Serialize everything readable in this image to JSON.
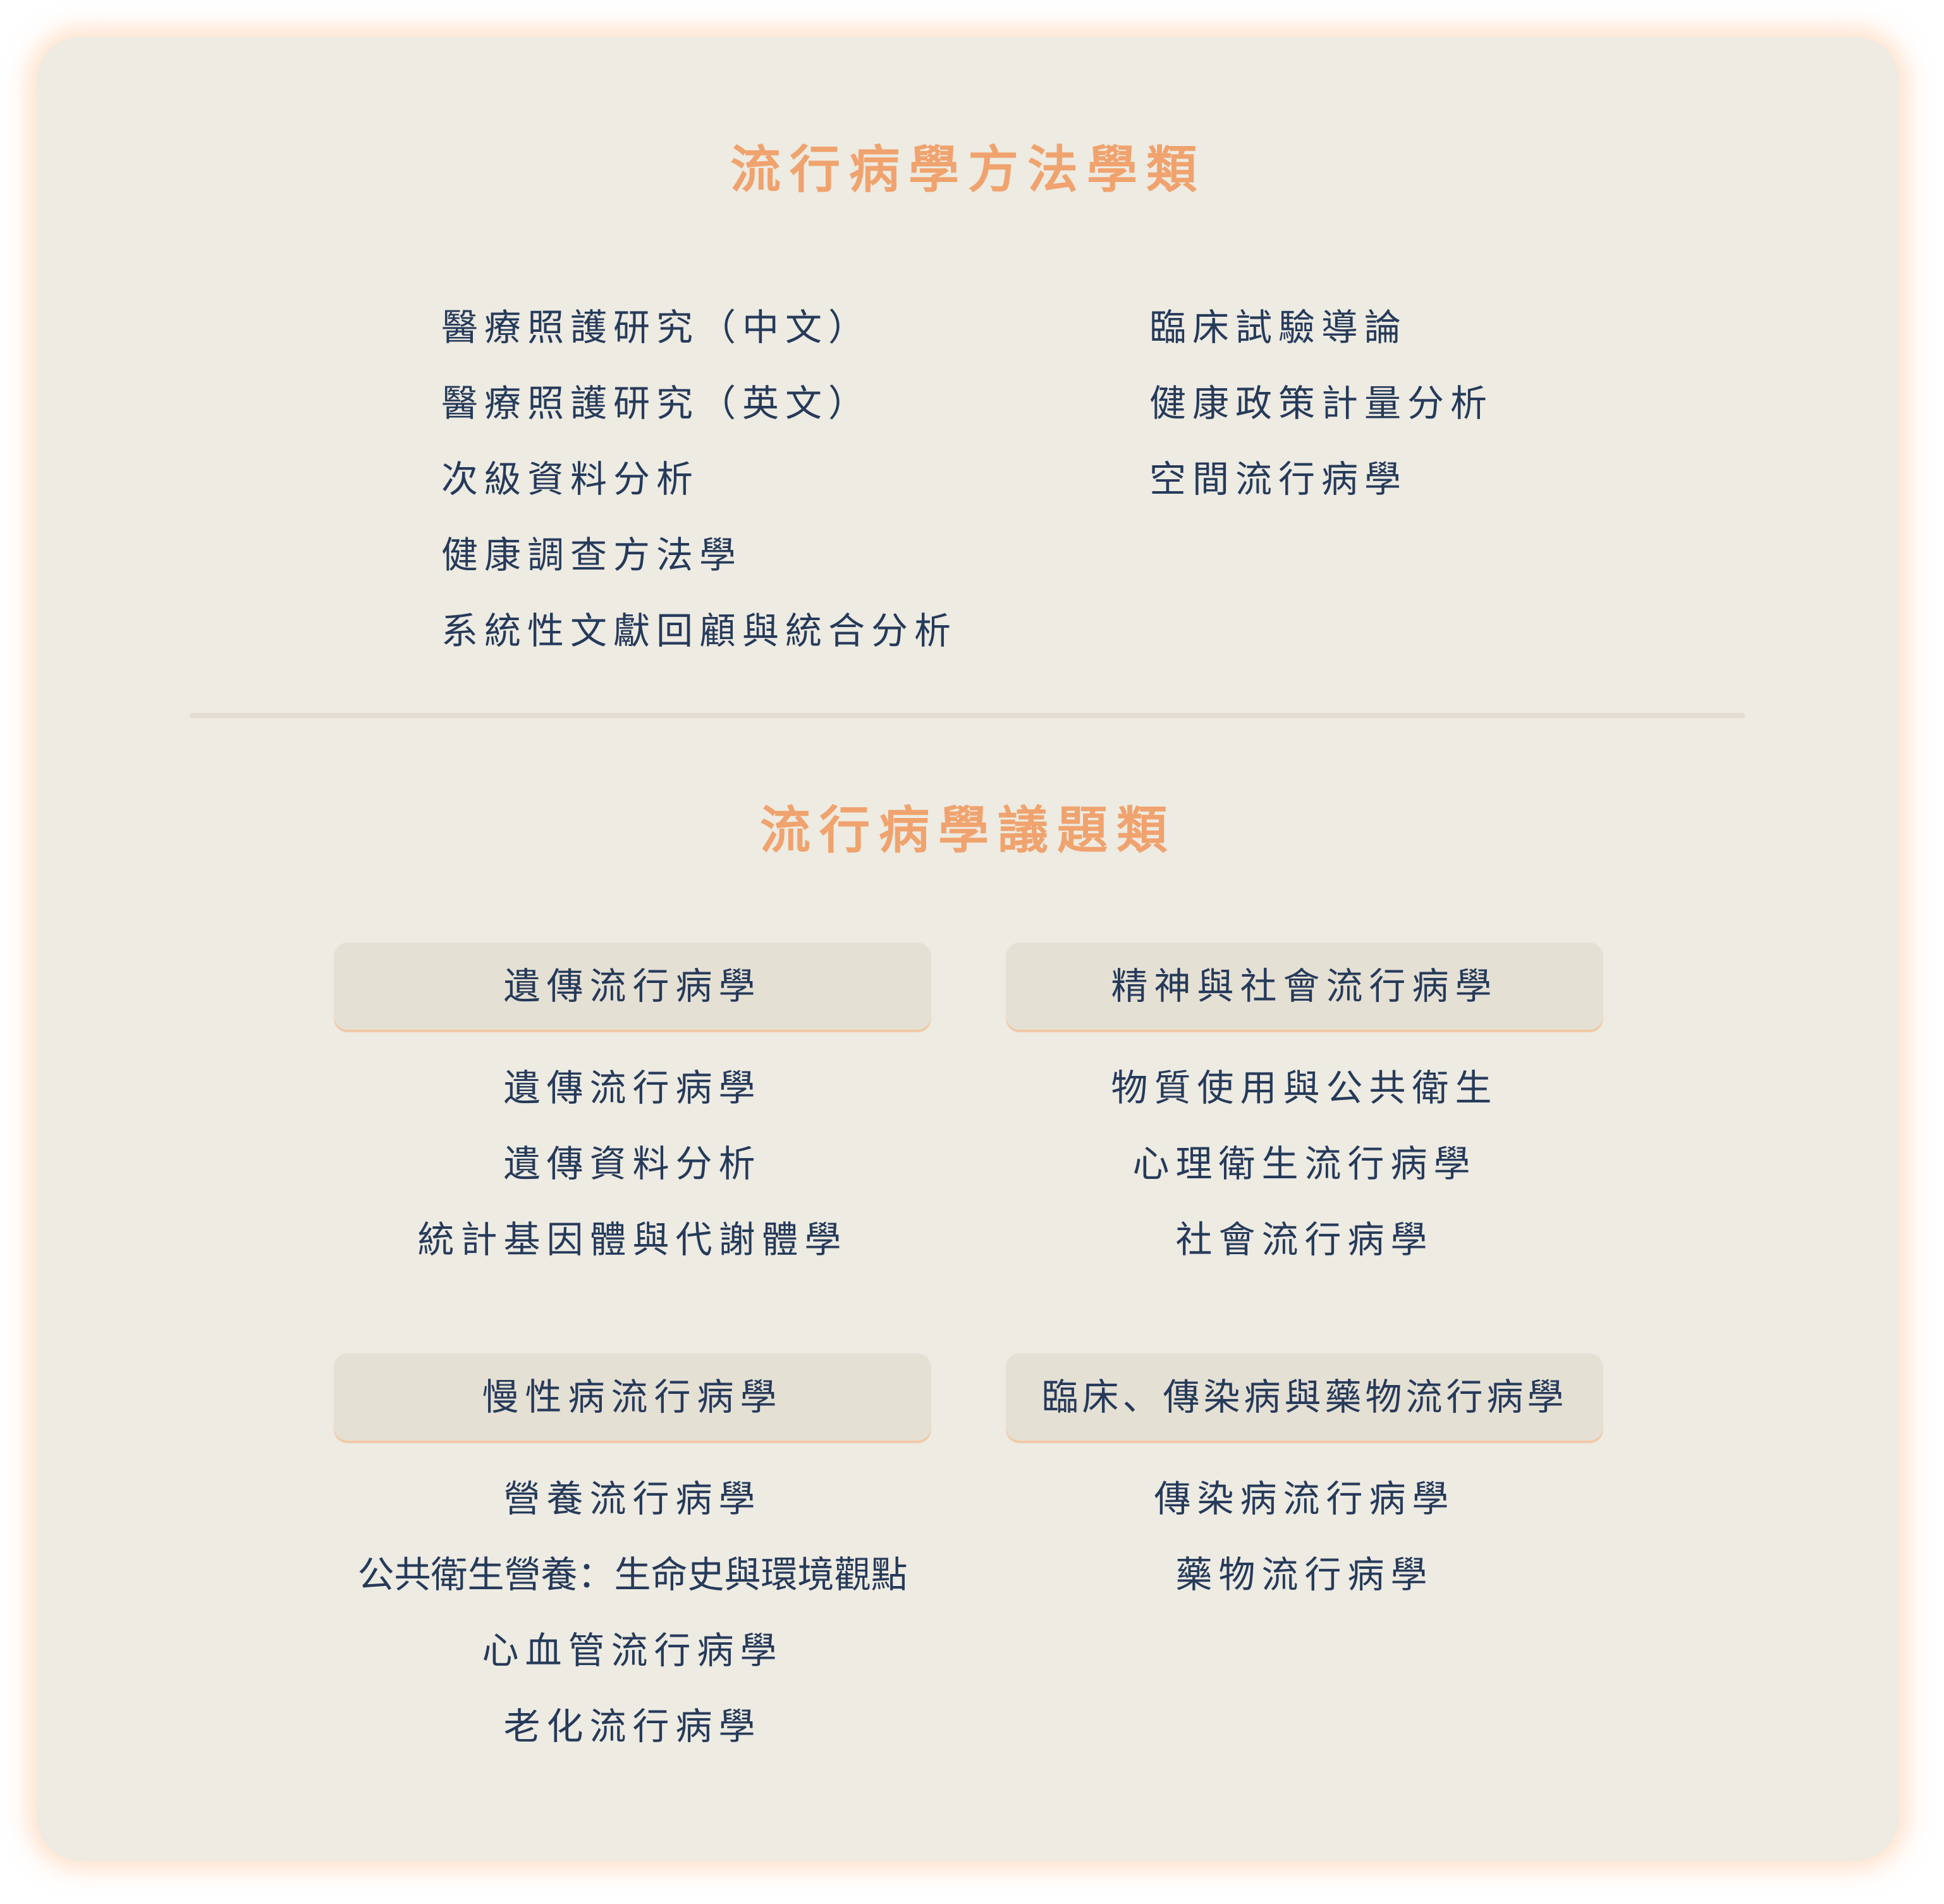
{
  "methodology": {
    "title": "流行病學方法學類",
    "left_items": [
      "醫療照護研究（中文）",
      "醫療照護研究（英文）",
      "次級資料分析",
      "健康調查方法學",
      "系統性文獻回顧與統合分析"
    ],
    "right_items": [
      "臨床試驗導論",
      "健康政策計量分析",
      "空間流行病學"
    ]
  },
  "topics": {
    "title": "流行病學議題類",
    "groups": [
      {
        "header": "遺傳流行病學",
        "items": [
          "遺傳流行病學",
          "遺傳資料分析",
          "統計基因體與代謝體學"
        ]
      },
      {
        "header": "精神與社會流行病學",
        "items": [
          "物質使用與公共衛生",
          "心理衛生流行病學",
          "社會流行病學"
        ]
      },
      {
        "header": "慢性病流行病學",
        "items": [
          "營養流行病學",
          "公共衛生營養：生命史與環境觀點",
          "心血管流行病學",
          "老化流行病學"
        ]
      },
      {
        "header": "臨床、傳染病與藥物流行病學",
        "items": [
          "傳染病流行病學",
          "藥物流行病學"
        ]
      }
    ]
  },
  "colors": {
    "title": "#f0a36e",
    "text": "#263a5a",
    "card_background": "#edebe2",
    "header_background": "#e5e0d4"
  }
}
